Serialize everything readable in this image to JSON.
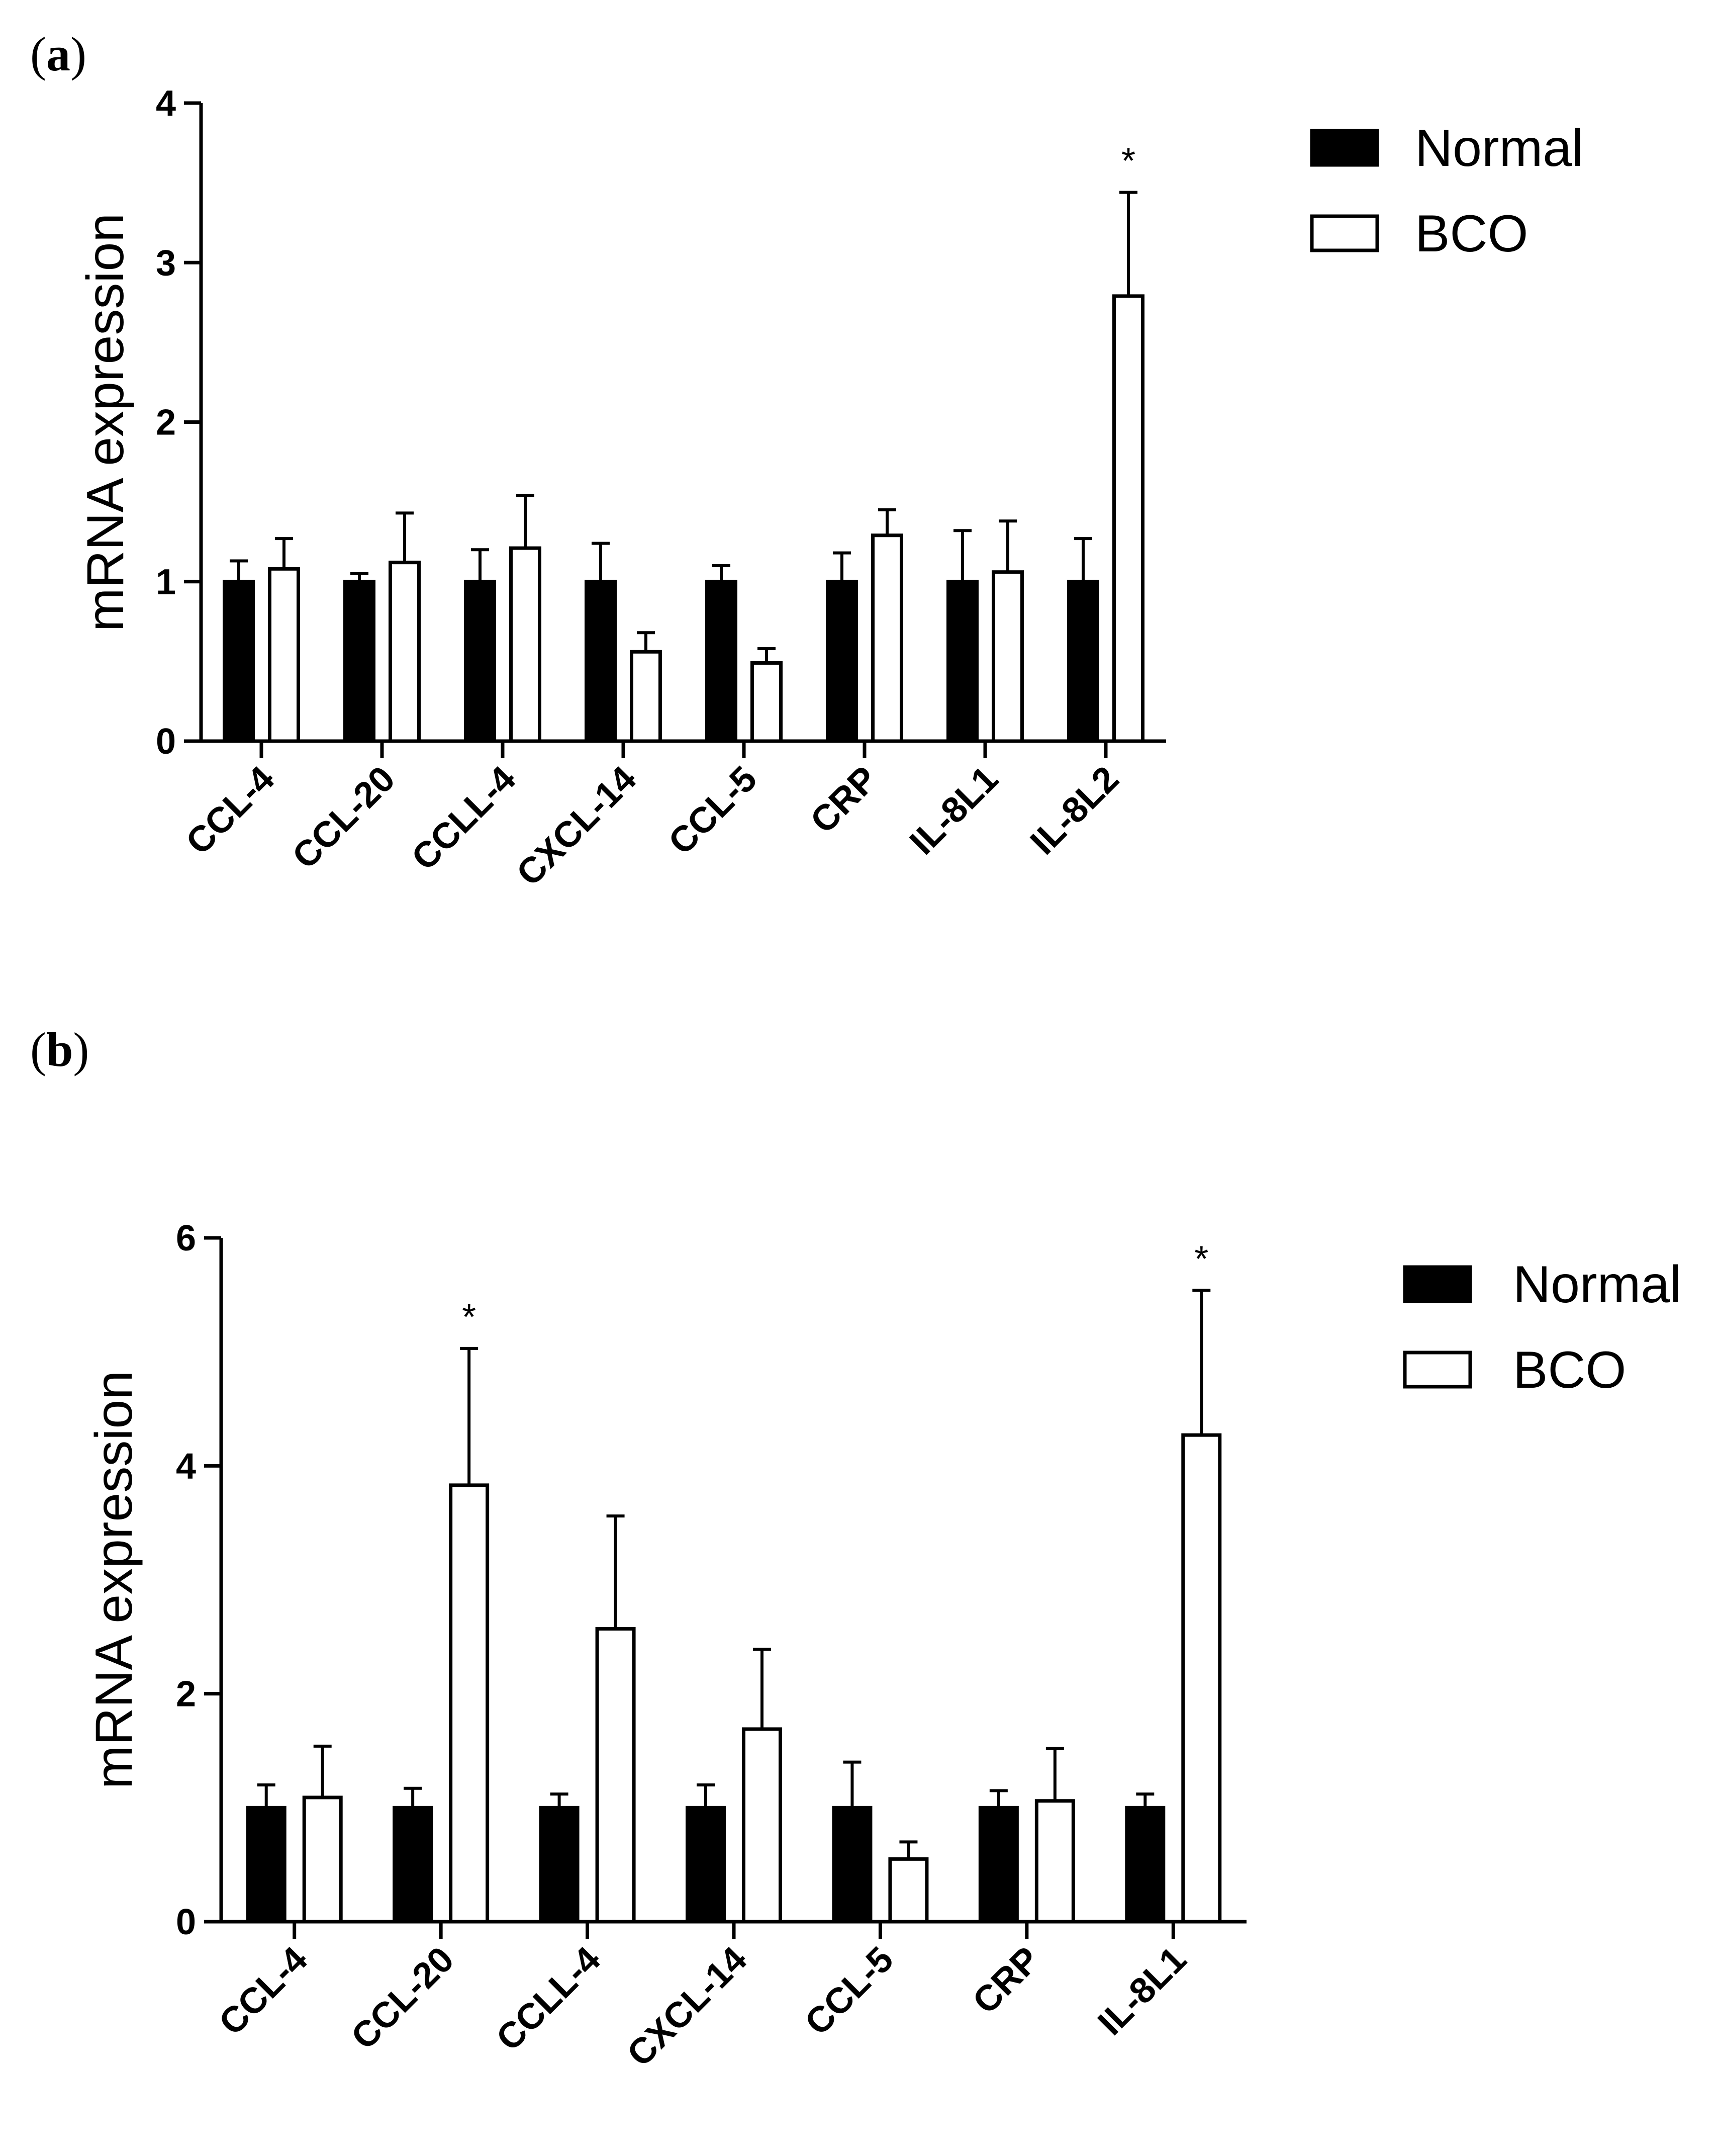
{
  "colors": {
    "normal_fill": "#000000",
    "bco_fill": "#ffffff",
    "stroke": "#000000"
  },
  "chart_data": [
    {
      "type": "bar",
      "panel_label": "a",
      "ylabel": "mRNA expression",
      "ylim": [
        0,
        4
      ],
      "yticks": [
        0,
        1,
        2,
        3,
        4
      ],
      "categories": [
        "CCL-4",
        "CCL-20",
        "CCLL-4",
        "CXCL-14",
        "CCL-5",
        "CRP",
        "IL-8L1",
        "IL-8L2"
      ],
      "legend": {
        "position": "top-right",
        "entries": [
          "Normal",
          "BCO"
        ]
      },
      "significance_marker": "*",
      "series": [
        {
          "name": "Normal",
          "values": [
            1,
            1,
            1,
            1,
            1,
            1,
            1,
            1
          ],
          "errors": [
            0.13,
            0.05,
            0.2,
            0.24,
            0.1,
            0.18,
            0.32,
            0.27
          ],
          "significant": [
            false,
            false,
            false,
            false,
            false,
            false,
            false,
            false
          ]
        },
        {
          "name": "BCO",
          "values": [
            1.08,
            1.12,
            1.21,
            0.56,
            0.49,
            1.29,
            1.06,
            2.79
          ],
          "errors": [
            0.19,
            0.31,
            0.33,
            0.12,
            0.09,
            0.16,
            0.32,
            0.65
          ],
          "significant": [
            false,
            false,
            false,
            false,
            false,
            false,
            false,
            true
          ]
        }
      ]
    },
    {
      "type": "bar",
      "panel_label": "b",
      "ylabel": "mRNA expression",
      "ylim": [
        0,
        6
      ],
      "yticks": [
        0,
        2,
        4,
        6
      ],
      "categories": [
        "CCL-4",
        "CCL-20",
        "CCLL-4",
        "CXCL-14",
        "CCL-5",
        "CRP",
        "IL-8L1"
      ],
      "legend": {
        "position": "top-right",
        "entries": [
          "Normal",
          "BCO"
        ]
      },
      "significance_marker": "*",
      "series": [
        {
          "name": "Normal",
          "values": [
            1,
            1,
            1,
            1,
            1,
            1,
            1
          ],
          "errors": [
            0.2,
            0.17,
            0.12,
            0.2,
            0.4,
            0.15,
            0.12
          ],
          "significant": [
            false,
            false,
            false,
            false,
            false,
            false,
            false
          ]
        },
        {
          "name": "BCO",
          "values": [
            1.09,
            3.83,
            2.57,
            1.69,
            0.55,
            1.06,
            4.27
          ],
          "errors": [
            0.45,
            1.2,
            0.99,
            0.7,
            0.15,
            0.46,
            1.27
          ],
          "significant": [
            false,
            true,
            false,
            false,
            false,
            false,
            true
          ]
        }
      ]
    }
  ]
}
